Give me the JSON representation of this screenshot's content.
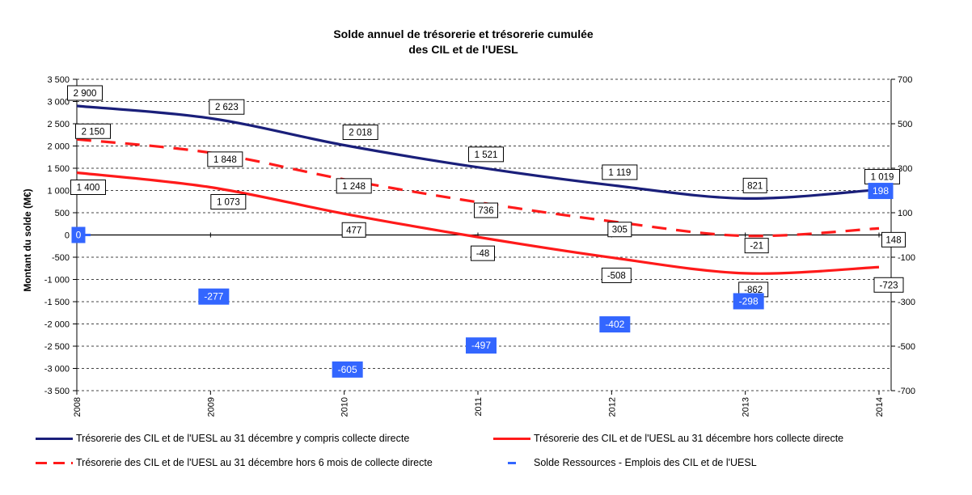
{
  "chart_data": {
    "type": "line",
    "title_lines": [
      "Solde annuel de trésorerie et trésorerie cumulée",
      "des CIL et de l'UESL"
    ],
    "ylabel": "Montant du solde (M€)",
    "x": [
      "2008",
      "2009",
      "2010",
      "2011",
      "2012",
      "2013",
      "2014"
    ],
    "ylim": [
      -3500,
      3500
    ],
    "y_ticks": [
      "3 500",
      "3 000",
      "2 500",
      "2 000",
      "1 500",
      "1 000",
      "500",
      "0",
      "-500",
      "-1 000",
      "-1 500",
      "-2 000",
      "-2 500",
      "-3 000",
      "-3 500"
    ],
    "y2lim": [
      -700,
      700
    ],
    "y2_ticks": [
      "700",
      "500",
      "300",
      "100",
      "-100",
      "-300",
      "-500",
      "-700"
    ],
    "grid": "horizontal dashed",
    "legend_position": "bottom",
    "series": [
      {
        "name": "Trésorerie des CIL et de l'UESL au 31 décembre y compris collecte directe",
        "axis": "left",
        "style": "solid",
        "color": "#1a1f7a",
        "values": [
          2900,
          2623,
          2018,
          1521,
          1119,
          821,
          1019
        ],
        "labels": [
          "2 900",
          "2 623",
          "2 018",
          "1 521",
          "1 119",
          "821",
          "1 019"
        ]
      },
      {
        "name": "Trésorerie des CIL et de l'UESL au 31 décembre hors collecte directe",
        "axis": "left",
        "style": "solid",
        "color": "#ff1a1a",
        "values": [
          1400,
          1073,
          477,
          -48,
          -508,
          -862,
          -723
        ],
        "labels": [
          "1 400",
          "1 073",
          "477",
          "-48",
          "-508",
          "-862",
          "-723"
        ]
      },
      {
        "name": "Trésorerie des CIL et de l'UESL au 31 décembre hors 6 mois de collecte directe",
        "axis": "left",
        "style": "dashed",
        "color": "#ff1a1a",
        "values": [
          2150,
          1848,
          1248,
          736,
          305,
          -21,
          148
        ],
        "labels": [
          "2 150",
          "1 848",
          "1 248",
          "736",
          "305",
          "-21",
          "148"
        ]
      },
      {
        "name": "Solde Ressources - Emplois des CIL et de l'UESL",
        "axis": "right",
        "style": "marker",
        "color": "#3366ff",
        "values": [
          0,
          -277,
          -605,
          -497,
          -402,
          -298,
          198
        ],
        "labels": [
          "0",
          "-277",
          "-605",
          "-497",
          "-402",
          "-298",
          "198"
        ]
      }
    ]
  }
}
